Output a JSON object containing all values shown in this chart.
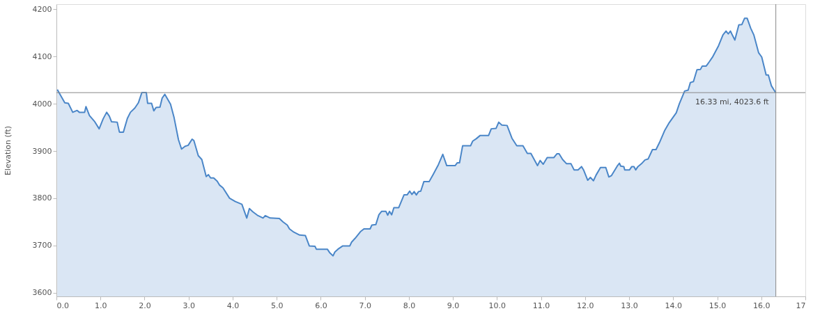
{
  "chart_data": {
    "type": "area",
    "ylabel": "Elevation (ft)",
    "xlim": [
      0,
      17
    ],
    "ylim": [
      3592,
      4211
    ],
    "xticks": [
      {
        "value": 0,
        "label": "0.0"
      },
      {
        "value": 1,
        "label": "1.0"
      },
      {
        "value": 2,
        "label": "2.0"
      },
      {
        "value": 3,
        "label": "3.0"
      },
      {
        "value": 4,
        "label": "4.0"
      },
      {
        "value": 5,
        "label": "5.0"
      },
      {
        "value": 6,
        "label": "6.0"
      },
      {
        "value": 7,
        "label": "7.0"
      },
      {
        "value": 8,
        "label": "8.0"
      },
      {
        "value": 9,
        "label": "9.0"
      },
      {
        "value": 10,
        "label": "10.0"
      },
      {
        "value": 11,
        "label": "11.0"
      },
      {
        "value": 12,
        "label": "12.0"
      },
      {
        "value": 13,
        "label": "13.0"
      },
      {
        "value": 14,
        "label": "14.0"
      },
      {
        "value": 15,
        "label": "15.0"
      },
      {
        "value": 16,
        "label": "16.0"
      },
      {
        "value": 17,
        "label": "17"
      }
    ],
    "yticks": [
      3600,
      3700,
      3800,
      3900,
      4000,
      4100,
      4200
    ],
    "grid": false,
    "series": [
      {
        "color": "#4a86c8",
        "x": [
          0.02,
          0.19,
          0.27,
          0.37,
          0.47,
          0.52,
          0.64,
          0.67,
          0.75,
          0.87,
          0.97,
          1.06,
          1.14,
          1.2,
          1.25,
          1.38,
          1.43,
          1.52,
          1.61,
          1.68,
          1.78,
          1.86,
          1.94,
          2.04,
          2.07,
          2.16,
          2.21,
          2.26,
          2.35,
          2.4,
          2.46,
          2.59,
          2.67,
          2.77,
          2.84,
          2.92,
          2.99,
          3.08,
          3.12,
          3.22,
          3.3,
          3.4,
          3.45,
          3.5,
          3.57,
          3.65,
          3.7,
          3.78,
          3.93,
          4.06,
          4.21,
          4.32,
          4.38,
          4.46,
          4.56,
          4.69,
          4.74,
          4.85,
          5.06,
          5.14,
          5.24,
          5.29,
          5.39,
          5.52,
          5.65,
          5.74,
          5.87,
          5.9,
          6.15,
          6.2,
          6.28,
          6.32,
          6.39,
          6.5,
          6.66,
          6.7,
          6.78,
          6.9,
          6.98,
          7.12,
          7.16,
          7.25,
          7.32,
          7.38,
          7.48,
          7.52,
          7.56,
          7.61,
          7.66,
          7.77,
          7.89,
          7.96,
          8.02,
          8.07,
          8.12,
          8.17,
          8.22,
          8.27,
          8.34,
          8.46,
          8.55,
          8.67,
          8.77,
          8.86,
          9.05,
          9.1,
          9.15,
          9.22,
          9.4,
          9.45,
          9.53,
          9.62,
          9.81,
          9.87,
          9.98,
          10.04,
          10.11,
          10.23,
          10.34,
          10.45,
          10.59,
          10.69,
          10.77,
          10.92,
          10.98,
          11.05,
          11.14,
          11.29,
          11.36,
          11.41,
          11.49,
          11.58,
          11.68,
          11.75,
          11.84,
          11.92,
          11.97,
          12.06,
          12.12,
          12.19,
          12.25,
          12.35,
          12.47,
          12.54,
          12.6,
          12.73,
          12.78,
          12.81,
          12.88,
          12.9,
          13.01,
          13.06,
          13.11,
          13.15,
          13.2,
          13.28,
          13.36,
          13.43,
          13.53,
          13.61,
          13.69,
          13.81,
          13.91,
          14.07,
          14.14,
          14.26,
          14.34,
          14.39,
          14.46,
          14.54,
          14.62,
          14.66,
          14.75,
          14.82,
          14.9,
          15.03,
          15.13,
          15.2,
          15.25,
          15.3,
          15.33,
          15.4,
          15.49,
          15.56,
          15.62,
          15.68,
          15.76,
          15.83,
          15.94,
          16.01,
          16.11,
          16.16,
          16.23,
          16.31,
          16.33
        ],
        "values": [
          4030,
          4002,
          4001,
          3982,
          3986,
          3982,
          3982,
          3994,
          3975,
          3962,
          3947,
          3968,
          3982,
          3974,
          3962,
          3961,
          3940,
          3940,
          3969,
          3982,
          3991,
          4002,
          4024,
          4024,
          4001,
          4001,
          3985,
          3992,
          3993,
          4012,
          4020,
          3999,
          3971,
          3924,
          3904,
          3910,
          3912,
          3925,
          3922,
          3890,
          3882,
          3846,
          3850,
          3843,
          3843,
          3836,
          3828,
          3822,
          3800,
          3793,
          3787,
          3758,
          3778,
          3771,
          3764,
          3758,
          3763,
          3758,
          3757,
          3750,
          3743,
          3735,
          3728,
          3722,
          3721,
          3699,
          3698,
          3692,
          3692,
          3685,
          3678,
          3686,
          3692,
          3699,
          3699,
          3707,
          3715,
          3729,
          3735,
          3735,
          3743,
          3744,
          3765,
          3772,
          3772,
          3764,
          3772,
          3765,
          3780,
          3780,
          3807,
          3807,
          3815,
          3808,
          3814,
          3807,
          3814,
          3815,
          3835,
          3835,
          3850,
          3871,
          3893,
          3869,
          3869,
          3875,
          3875,
          3911,
          3911,
          3921,
          3926,
          3933,
          3933,
          3947,
          3948,
          3961,
          3955,
          3954,
          3927,
          3911,
          3911,
          3895,
          3895,
          3869,
          3880,
          3872,
          3886,
          3886,
          3894,
          3894,
          3882,
          3873,
          3873,
          3860,
          3860,
          3867,
          3859,
          3838,
          3844,
          3837,
          3849,
          3865,
          3865,
          3845,
          3848,
          3868,
          3874,
          3868,
          3867,
          3860,
          3860,
          3867,
          3867,
          3860,
          3867,
          3873,
          3881,
          3883,
          3903,
          3903,
          3918,
          3944,
          3960,
          3981,
          4000,
          4027,
          4029,
          4045,
          4047,
          4072,
          4073,
          4080,
          4080,
          4089,
          4100,
          4123,
          4146,
          4154,
          4148,
          4154,
          4148,
          4135,
          4167,
          4168,
          4181,
          4181,
          4160,
          4146,
          4108,
          4099,
          4061,
          4061,
          4038,
          4026,
          4023.6
        ]
      }
    ],
    "ref_lines": [
      {
        "axis": "x",
        "value": 16.33,
        "color": "#888888"
      },
      {
        "axis": "y",
        "value": 4023.6,
        "color": "#888888"
      }
    ],
    "annotations": [
      {
        "text": "16.33 mi, 4023.6 ft",
        "x": 16.33,
        "y": 4023.6
      }
    ]
  }
}
